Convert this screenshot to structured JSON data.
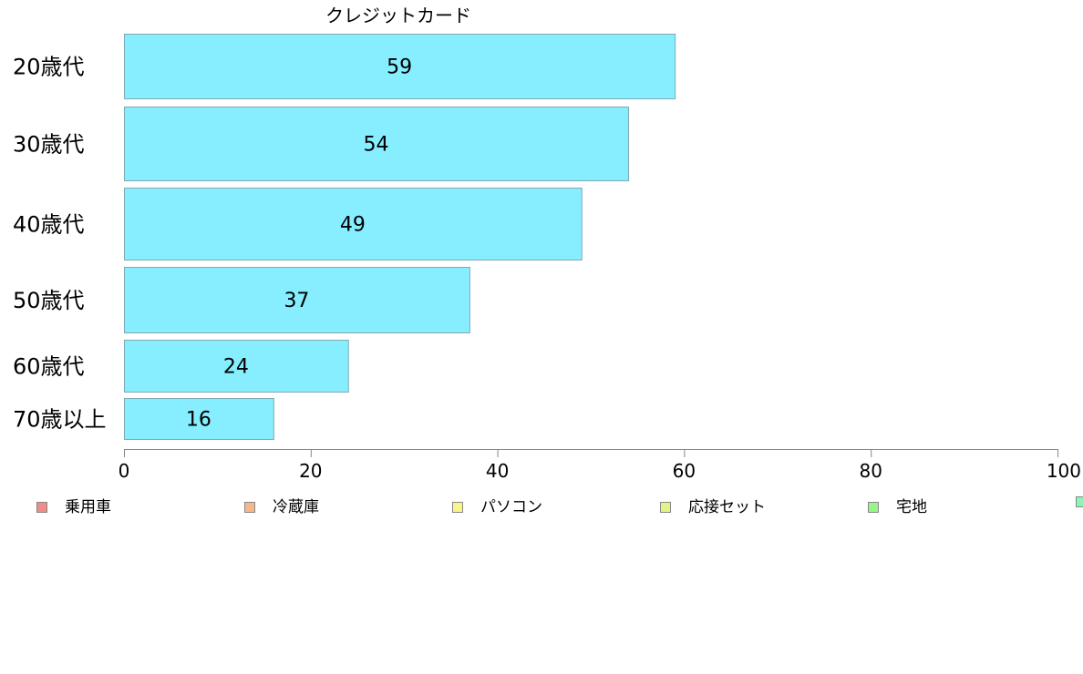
{
  "chart_data": {
    "type": "bar",
    "orientation": "horizontal",
    "title": "クレジットカード",
    "categories": [
      "20歳代",
      "30歳代",
      "40歳代",
      "50歳代",
      "60歳代",
      "70歳以上"
    ],
    "series": [
      {
        "values": [
          59,
          54,
          49,
          37,
          24,
          16
        ],
        "color": "#87EEFF"
      }
    ],
    "data_labels": [
      "59",
      "54",
      "49",
      "37",
      "24",
      "16"
    ],
    "xlim": [
      0,
      100
    ],
    "x_ticks": [
      0,
      20,
      40,
      60,
      80,
      100
    ],
    "x_tick_labels": [
      "0",
      "20",
      "40",
      "60",
      "80",
      "100"
    ],
    "grid": false,
    "legend": {
      "placement": "bottom",
      "entries": [
        {
          "label": "乗用車",
          "color": "#F28B8B"
        },
        {
          "label": "冷蔵庫",
          "color": "#F6B88A"
        },
        {
          "label": "パソコン",
          "color": "#FAF58A"
        },
        {
          "label": "応接セット",
          "color": "#DFF58A"
        },
        {
          "label": "宅地",
          "color": "#98F58A"
        },
        {
          "label": "",
          "color": "#8AF5B8"
        }
      ]
    }
  }
}
